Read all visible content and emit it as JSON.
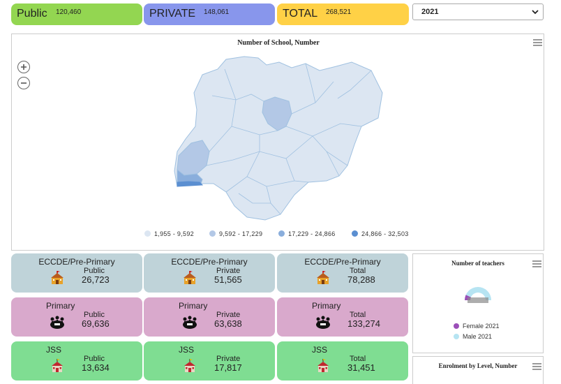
{
  "summary": {
    "public": {
      "label": "Public",
      "value": "120,460",
      "color": "#93d651"
    },
    "private": {
      "label": "PRIVATE",
      "value": "148,061",
      "color": "#8896ec"
    },
    "total": {
      "label": "TOTAL",
      "value": "268,521",
      "color": "#ffd146"
    }
  },
  "year_select": {
    "value": "2021",
    "icon": "chevron-down-icon"
  },
  "map": {
    "title": "Number of School, Number",
    "zoom_in_icon": "plus-icon",
    "zoom_out_icon": "minus-icon",
    "legend": [
      {
        "label": "1,955 - 9,592",
        "color": "#dce6f2"
      },
      {
        "label": "9,592 - 17,229",
        "color": "#b3c8e6"
      },
      {
        "label": "17,229 - 24,866",
        "color": "#8aaedc"
      },
      {
        "label": "24,866 - 32,503",
        "color": "#5b8fd1"
      }
    ]
  },
  "stats": {
    "eccde": [
      {
        "level": "ECCDE/Pre-Primary",
        "category": "Public",
        "value": "26,723"
      },
      {
        "level": "ECCDE/Pre-Primary",
        "category": "Private",
        "value": "51,565"
      },
      {
        "level": "ECCDE/Pre-Primary",
        "category": "Total",
        "value": "78,288"
      }
    ],
    "primary": [
      {
        "level": "Primary",
        "category": "Public",
        "value": "69,636"
      },
      {
        "level": "Primary",
        "category": "Private",
        "value": "63,638"
      },
      {
        "level": "Primary",
        "category": "Total",
        "value": "133,274"
      }
    ],
    "jss": [
      {
        "level": "JSS",
        "category": "Public",
        "value": "13,634"
      },
      {
        "level": "JSS",
        "category": "Private",
        "value": "17,817"
      },
      {
        "level": "JSS",
        "category": "Total",
        "value": "31,451"
      }
    ],
    "icons": {
      "eccde": "school-building-icon",
      "primary": "children-group-icon",
      "jss": "house-flag-icon"
    }
  },
  "teachers": {
    "title": "Number of teachers",
    "legend": [
      {
        "label": "Female 2021",
        "color": "#9b4fb8"
      },
      {
        "label": "Male 2021",
        "color": "#b6e4f2"
      }
    ]
  },
  "enrolment": {
    "title": "Enrolment by Level, Number"
  }
}
